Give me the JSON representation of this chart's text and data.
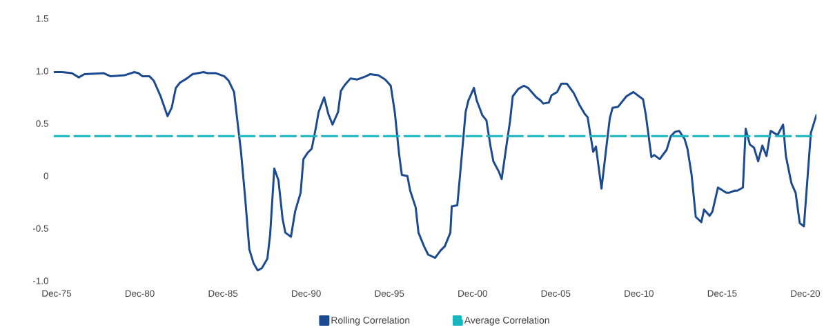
{
  "chart_data": {
    "type": "line",
    "xlim": [
      "1975-10",
      "2021-08"
    ],
    "xticks": [
      {
        "value": "1975-12",
        "label": "Dec-75"
      },
      {
        "value": "1980-12",
        "label": "Dec-80"
      },
      {
        "value": "1985-12",
        "label": "Dec-85"
      },
      {
        "value": "1990-12",
        "label": "Dec-90"
      },
      {
        "value": "1995-12",
        "label": "Dec-95"
      },
      {
        "value": "2000-12",
        "label": "Dec-00"
      },
      {
        "value": "2005-12",
        "label": "Dec-05"
      },
      {
        "value": "2010-12",
        "label": "Dec-10"
      },
      {
        "value": "2015-12",
        "label": "Dec-15"
      },
      {
        "value": "2020-12",
        "label": "Dec-20"
      }
    ],
    "ylim": [
      -1.0,
      1.5
    ],
    "yticks": [
      {
        "value": -1,
        "label": "-1.0"
      },
      -0.5,
      0,
      0.5,
      {
        "value": 1,
        "label": "1.0"
      },
      1.5
    ],
    "grid": false,
    "legend": "bottom",
    "marker": "none",
    "series": [
      {
        "name": "Rolling Correlation",
        "color": "#1b4a91",
        "line_style": "solid",
        "x": [
          "1975-10",
          "1976-04",
          "1976-11",
          "1977-04",
          "1977-08",
          "1978-10",
          "1979-03",
          "1980-01",
          "1980-08",
          "1980-11",
          "1981-02",
          "1981-07",
          "1981-10",
          "1982-03",
          "1982-08",
          "1982-11",
          "1983-02",
          "1983-05",
          "1983-10",
          "1984-02",
          "1984-10",
          "1985-01",
          "1985-07",
          "1986-01",
          "1986-04",
          "1986-08",
          "1986-10",
          "1987-01",
          "1987-04",
          "1987-07",
          "1987-10",
          "1988-01",
          "1988-04",
          "1988-08",
          "1988-10",
          "1989-01",
          "1989-04",
          "1989-07",
          "1989-09",
          "1990-01",
          "1990-04",
          "1990-08",
          "1990-10",
          "1991-01",
          "1991-04",
          "1991-07",
          "1991-09",
          "1992-01",
          "1992-04",
          "1992-07",
          "1992-11",
          "1993-01",
          "1993-04",
          "1993-08",
          "1994-01",
          "1994-07",
          "1994-10",
          "1995-04",
          "1995-09",
          "1996-01",
          "1996-04",
          "1996-07",
          "1996-09",
          "1997-01",
          "1997-03",
          "1997-07",
          "1997-09",
          "1998-01",
          "1998-04",
          "1998-09",
          "1999-01",
          "1999-04",
          "1999-08",
          "1999-09",
          "2000-01",
          "2000-03",
          "2000-07",
          "2000-09",
          "2001-01",
          "2001-03",
          "2001-07",
          "2001-10",
          "2002-01",
          "2002-03",
          "2002-07",
          "2002-09",
          "2003-01",
          "2003-03",
          "2003-05",
          "2003-09",
          "2004-01",
          "2004-04",
          "2004-10",
          "2005-01",
          "2005-03",
          "2005-07",
          "2005-09",
          "2006-01",
          "2006-04",
          "2006-08",
          "2007-01",
          "2007-05",
          "2007-09",
          "2007-11",
          "2008-03",
          "2008-05",
          "2008-09",
          "2009-01",
          "2009-03",
          "2009-05",
          "2009-09",
          "2010-03",
          "2010-08",
          "2011-03",
          "2011-05",
          "2011-09",
          "2011-11",
          "2012-03",
          "2012-08",
          "2012-11",
          "2013-02",
          "2013-05",
          "2013-09",
          "2013-11",
          "2014-02",
          "2014-05",
          "2014-09",
          "2014-11",
          "2015-03",
          "2015-05",
          "2015-09",
          "2016-03",
          "2016-05",
          "2016-09",
          "2016-11",
          "2017-03",
          "2017-05",
          "2017-08",
          "2017-11",
          "2018-02",
          "2018-05",
          "2018-08",
          "2018-11",
          "2019-04",
          "2019-08",
          "2019-10",
          "2020-02",
          "2020-05",
          "2020-08",
          "2020-11",
          "2021-04",
          "2021-08"
        ],
        "values": [
          0.99,
          0.99,
          0.98,
          0.94,
          0.97,
          0.98,
          0.95,
          0.96,
          0.99,
          0.98,
          0.95,
          0.95,
          0.91,
          0.76,
          0.57,
          0.65,
          0.84,
          0.89,
          0.93,
          0.97,
          0.99,
          0.98,
          0.98,
          0.95,
          0.91,
          0.8,
          0.57,
          0.23,
          -0.21,
          -0.7,
          -0.83,
          -0.9,
          -0.88,
          -0.79,
          -0.56,
          0.07,
          -0.04,
          -0.41,
          -0.54,
          -0.58,
          -0.34,
          -0.16,
          0.16,
          0.22,
          0.26,
          0.46,
          0.61,
          0.75,
          0.59,
          0.49,
          0.61,
          0.81,
          0.87,
          0.93,
          0.92,
          0.95,
          0.97,
          0.96,
          0.92,
          0.86,
          0.6,
          0.21,
          0.01,
          0.0,
          -0.14,
          -0.3,
          -0.54,
          -0.67,
          -0.75,
          -0.78,
          -0.71,
          -0.67,
          -0.54,
          -0.29,
          -0.28,
          0.01,
          0.61,
          0.72,
          0.84,
          0.72,
          0.58,
          0.53,
          0.28,
          0.14,
          0.04,
          -0.03,
          0.34,
          0.52,
          0.76,
          0.83,
          0.86,
          0.84,
          0.75,
          0.72,
          0.69,
          0.7,
          0.77,
          0.8,
          0.88,
          0.88,
          0.79,
          0.68,
          0.59,
          0.56,
          0.23,
          0.28,
          -0.12,
          0.33,
          0.55,
          0.65,
          0.66,
          0.76,
          0.8,
          0.73,
          0.58,
          0.18,
          0.2,
          0.16,
          0.25,
          0.38,
          0.42,
          0.43,
          0.35,
          0.26,
          0.01,
          -0.39,
          -0.44,
          -0.32,
          -0.38,
          -0.34,
          -0.11,
          -0.16,
          -0.16,
          -0.14,
          -0.14,
          -0.11,
          0.45,
          0.3,
          0.27,
          0.14,
          0.29,
          0.19,
          0.43,
          0.39,
          0.49,
          0.19,
          -0.07,
          -0.16,
          -0.45,
          -0.48,
          0.41,
          0.58
        ]
      },
      {
        "name": "Average Correlation",
        "color": "#17b5be",
        "line_style": "dashed",
        "x": [
          "1975-10",
          "2021-08"
        ],
        "values": [
          0.38,
          0.38
        ]
      }
    ]
  }
}
